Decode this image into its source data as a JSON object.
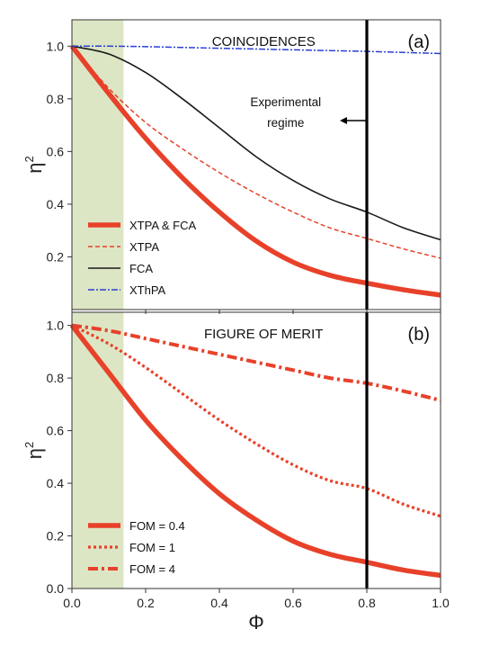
{
  "chart_data": [
    {
      "type": "line",
      "panel_label": "(a)",
      "title": "COINCIDENCES",
      "xlabel": "Φ",
      "ylabel": "η",
      "ylabel_sup": "2",
      "xlim": [
        0,
        1
      ],
      "ylim": [
        0,
        1.1
      ],
      "yticks": [
        "0.2",
        "0.4",
        "0.6",
        "0.8",
        "1.0"
      ],
      "shaded_region": [
        0,
        0.14
      ],
      "shade_color": "#dce6c4",
      "vline": 0.8,
      "annotation": {
        "lines": [
          "Experimental",
          "regime"
        ],
        "arrow": "left"
      },
      "legend_position": "bottom-left",
      "series": [
        {
          "name": "XTPA & FCA",
          "color": "#e8412a",
          "style": "solid-thick",
          "x": [
            0,
            0.1,
            0.2,
            0.3,
            0.4,
            0.5,
            0.6,
            0.7,
            0.8,
            0.9,
            1.0
          ],
          "y": [
            1.0,
            0.82,
            0.65,
            0.5,
            0.37,
            0.26,
            0.18,
            0.13,
            0.1,
            0.075,
            0.055
          ]
        },
        {
          "name": "XTPA",
          "color": "#e8412a",
          "style": "dashed",
          "x": [
            0,
            0.1,
            0.2,
            0.3,
            0.4,
            0.5,
            0.6,
            0.7,
            0.8,
            0.9,
            1.0
          ],
          "y": [
            1.0,
            0.84,
            0.71,
            0.61,
            0.52,
            0.44,
            0.37,
            0.31,
            0.27,
            0.23,
            0.195
          ]
        },
        {
          "name": "FCA",
          "color": "#1a1a1a",
          "style": "solid",
          "x": [
            0,
            0.1,
            0.2,
            0.3,
            0.4,
            0.5,
            0.6,
            0.7,
            0.8,
            0.9,
            1.0
          ],
          "y": [
            1.0,
            0.97,
            0.9,
            0.8,
            0.69,
            0.58,
            0.49,
            0.42,
            0.37,
            0.31,
            0.265
          ]
        },
        {
          "name": "XThPA",
          "color": "#2a3fd6",
          "style": "dashdot",
          "x": [
            0,
            0.1,
            0.2,
            0.3,
            0.4,
            0.5,
            0.6,
            0.7,
            0.8,
            0.9,
            1.0
          ],
          "y": [
            1.0,
            1.0,
            0.998,
            0.995,
            0.992,
            0.989,
            0.986,
            0.983,
            0.98,
            0.976,
            0.972
          ]
        }
      ]
    },
    {
      "type": "line",
      "panel_label": "(b)",
      "title": "FIGURE OF MERIT",
      "xlabel": "Φ",
      "ylabel": "η",
      "ylabel_sup": "2",
      "xlim": [
        0,
        1
      ],
      "ylim": [
        0,
        1.05
      ],
      "xticks": [
        "0.0",
        "0.2",
        "0.4",
        "0.6",
        "0.8",
        "1.0"
      ],
      "yticks": [
        "0.0",
        "0.2",
        "0.4",
        "0.6",
        "0.8",
        "1.0"
      ],
      "shaded_region": [
        0,
        0.14
      ],
      "shade_color": "#dce6c4",
      "vline": 0.8,
      "legend_position": "bottom-left",
      "series": [
        {
          "name": "FOM = 0.4",
          "color": "#e8412a",
          "style": "solid-thick",
          "x": [
            0,
            0.1,
            0.2,
            0.3,
            0.4,
            0.5,
            0.6,
            0.7,
            0.8,
            0.9,
            1.0
          ],
          "y": [
            1.0,
            0.82,
            0.64,
            0.49,
            0.36,
            0.26,
            0.18,
            0.13,
            0.1,
            0.07,
            0.05
          ]
        },
        {
          "name": "FOM = 1",
          "color": "#e8412a",
          "style": "dotted",
          "x": [
            0,
            0.1,
            0.2,
            0.3,
            0.4,
            0.5,
            0.6,
            0.7,
            0.8,
            0.9,
            1.0
          ],
          "y": [
            1.0,
            0.93,
            0.84,
            0.74,
            0.64,
            0.55,
            0.47,
            0.41,
            0.38,
            0.32,
            0.275
          ]
        },
        {
          "name": "FOM = 4",
          "color": "#e8412a",
          "style": "dashdot-thick",
          "x": [
            0,
            0.1,
            0.2,
            0.3,
            0.4,
            0.5,
            0.6,
            0.7,
            0.8,
            0.9,
            1.0
          ],
          "y": [
            1.0,
            0.98,
            0.95,
            0.92,
            0.89,
            0.86,
            0.83,
            0.8,
            0.78,
            0.75,
            0.715
          ]
        }
      ]
    }
  ]
}
